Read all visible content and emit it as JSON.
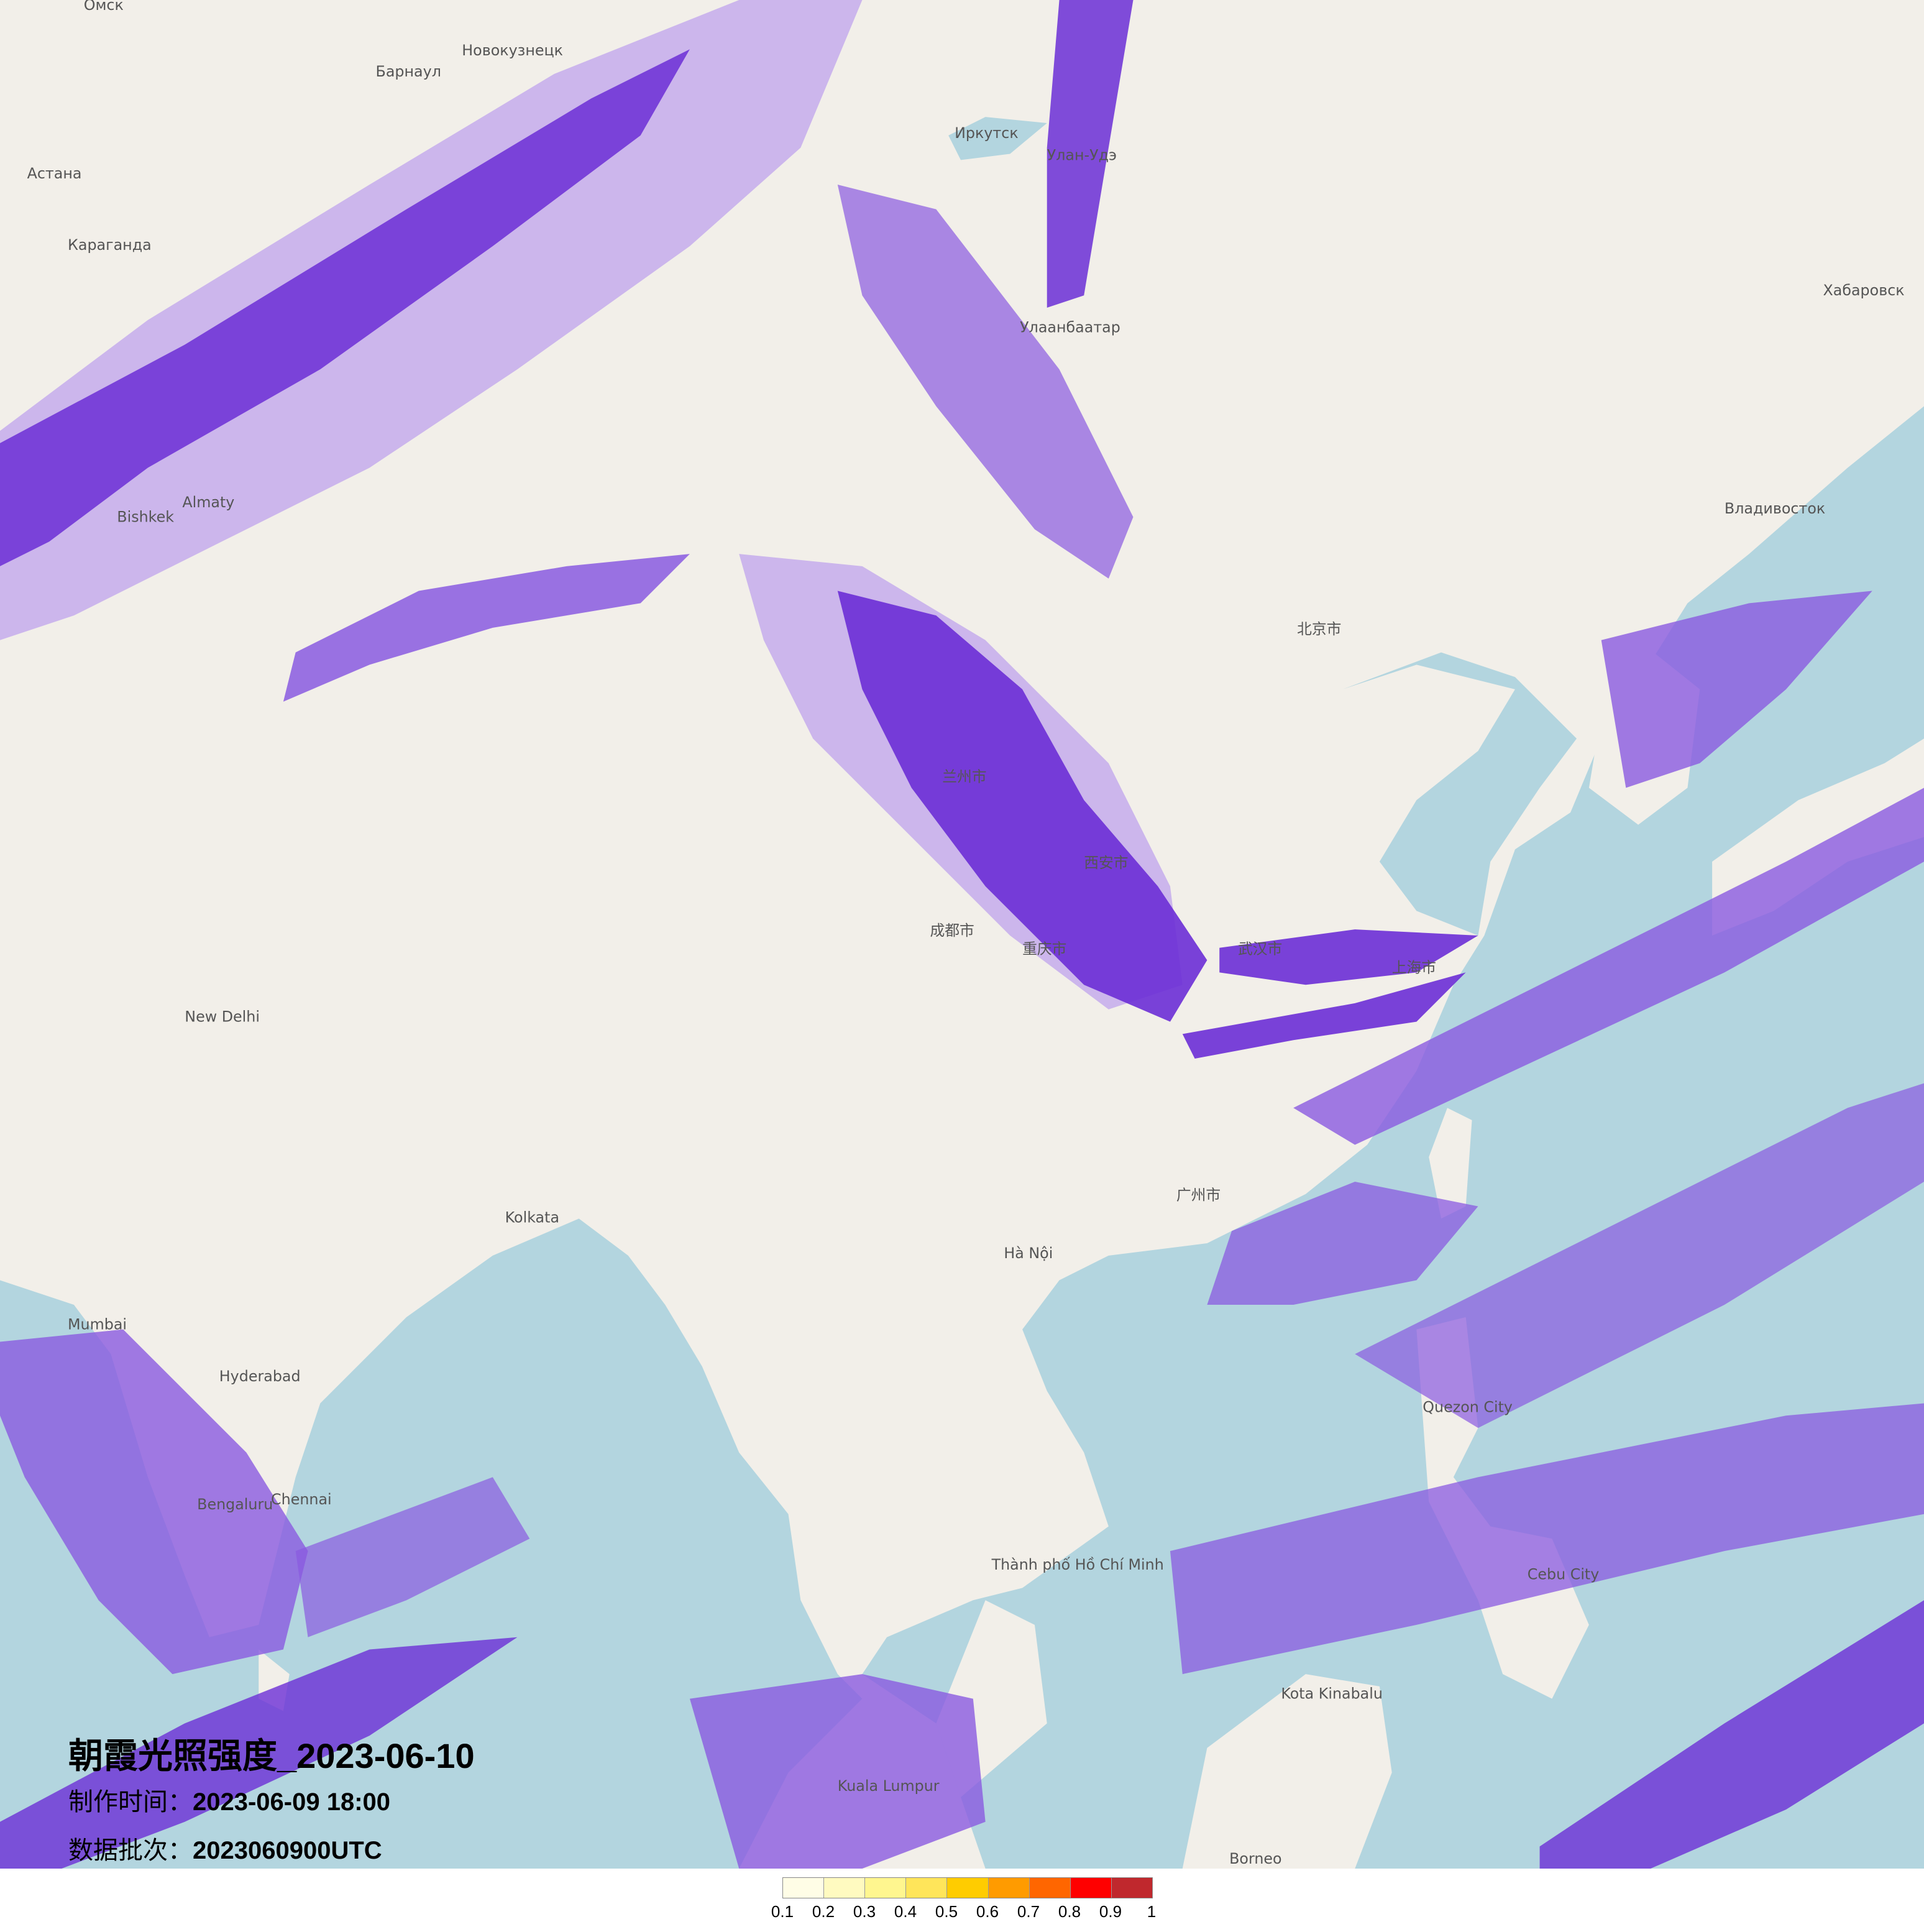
{
  "title": "朝霞光照强度_2023-06-10",
  "production_time_label": "制作时间：",
  "production_time": "2023-06-09 18:00",
  "batch_label": "数据批次：",
  "batch": "2023060900UTC",
  "legend": {
    "ticks": [
      "0.1",
      "0.2",
      "0.3",
      "0.4",
      "0.5",
      "0.6",
      "0.7",
      "0.8",
      "0.9",
      "1"
    ],
    "colors": [
      "#fffde6",
      "#fffac0",
      "#fff68f",
      "#ffe55a",
      "#ffcc00",
      "#ff9b00",
      "#ff6600",
      "#ff0000",
      "#c0282d"
    ]
  },
  "map_colors": {
    "land": "#f2efe9",
    "sea": "#b3d5df",
    "cloud_dark": "#6b2ed6",
    "cloud_mid": "#8a5ae0",
    "cloud_light": "#c2a8ec"
  },
  "places": [
    "Омск",
    "Астана",
    "Караганда",
    "Барнаул",
    "Новокузнецк",
    "Иркутск",
    "Улан-Удэ",
    "Улаанбаатар",
    "Almaty",
    "Bishkek",
    "北京市",
    "上海市",
    "武汉市",
    "成都市",
    "重庆市",
    "西安市",
    "兰州市",
    "广州市",
    "New Delhi",
    "Kolkata",
    "Hyderabad",
    "Mumbai",
    "Bengaluru",
    "Chennai",
    "Hà Nội",
    "Thành phố Hồ Chí Minh",
    "Kuala Lumpur",
    "Cebu City",
    "Quezon City",
    "Владивосток",
    "Хабаровск",
    "Borneo",
    "Kota Kinabalu"
  ]
}
